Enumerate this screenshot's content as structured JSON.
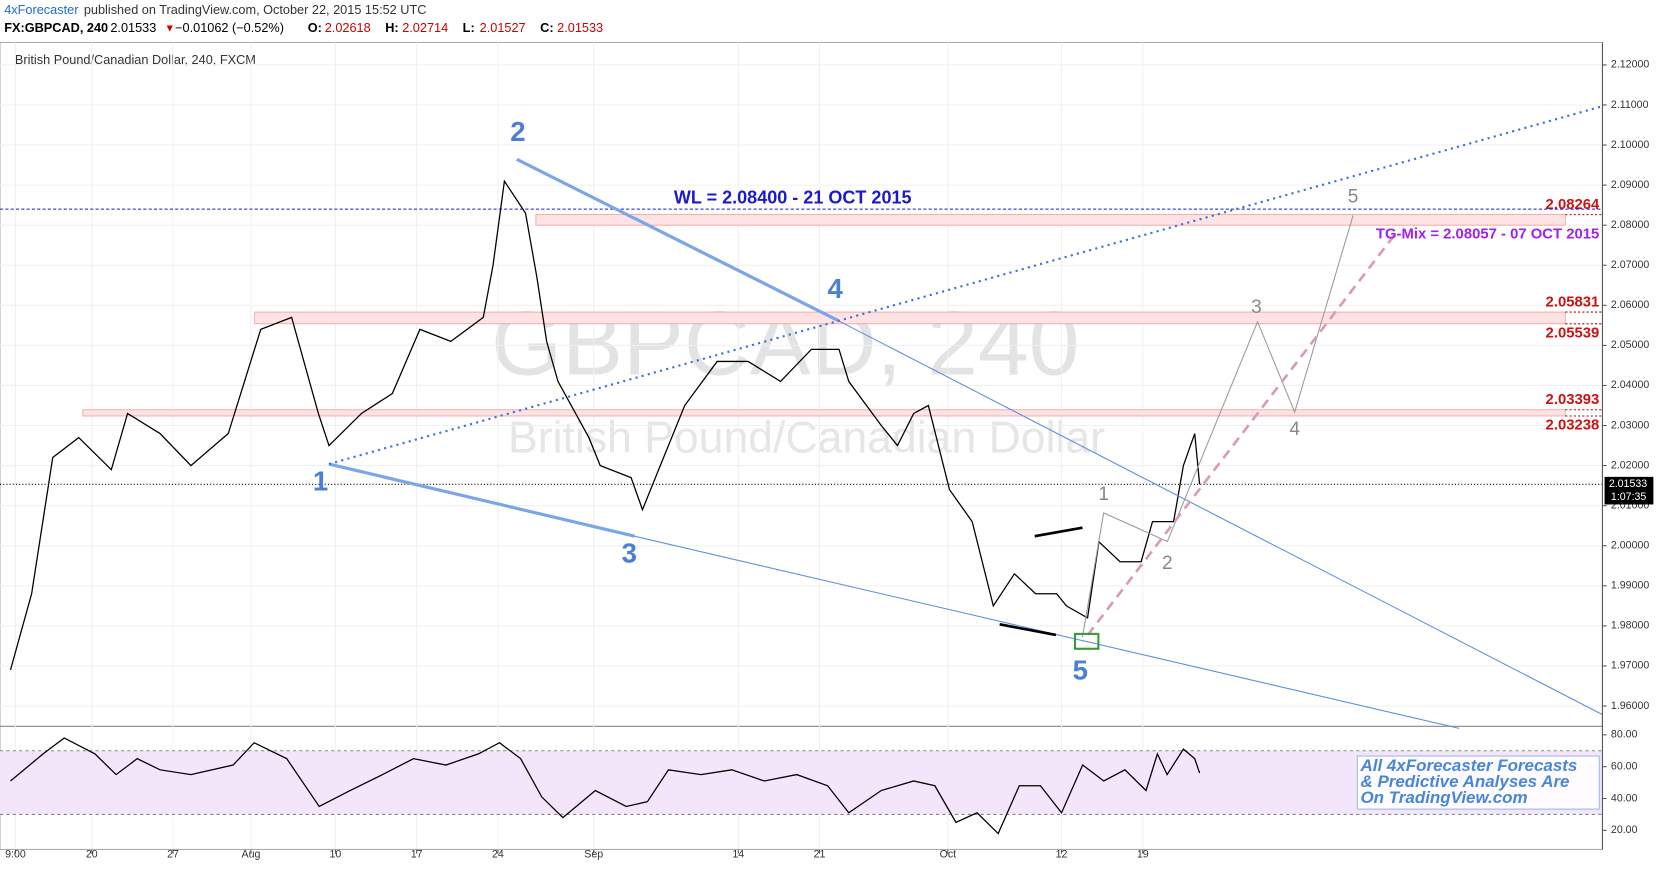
{
  "header": {
    "author": "4xForecaster",
    "published": "published on TradingView.com, October 22, 2015 15:52 UTC",
    "symbol": "FX:GBPCAD, 240",
    "last": "2.01533",
    "change": "−0.01062 (−0.52%)",
    "ohlc": [
      {
        "label": "O:",
        "value": "2.02618"
      },
      {
        "label": "H:",
        "value": "2.02714"
      },
      {
        "label": "L:",
        "value": "2.01527"
      },
      {
        "label": "C:",
        "value": "2.01533"
      }
    ]
  },
  "chart_data": [
    {
      "type": "line",
      "title": "British Pound/Canadian Dollar, 240, FXCM",
      "watermark": "GBPCAD, 240",
      "watermark_sub": "British Pound/Canadian Dollar",
      "color": "#000000",
      "grid": true,
      "x": [
        0,
        1.3,
        2.6,
        4.2,
        6.2,
        7.2,
        9.2,
        11.1,
        13.4,
        15.4,
        17.3,
        18.95,
        19.6,
        21.6,
        23.5,
        25.2,
        27.1,
        29.1,
        29.7,
        30.4,
        31.7,
        32.4,
        33.0,
        33.7,
        35.6,
        36.3,
        38.2,
        38.9,
        40.2,
        41.5,
        43.5,
        45.4,
        47.4,
        49.3,
        51.0,
        51.6,
        53.6,
        54.6,
        55.6,
        56.5,
        57.8,
        59.2,
        60.5,
        61.8,
        63.1,
        64.4,
        65.0,
        66.3,
        67.0,
        68.3,
        69.6,
        70.3,
        71.6,
        72.2,
        72.9,
        73.2
      ],
      "values": [
        1.969,
        1.988,
        2.022,
        2.027,
        2.019,
        2.033,
        2.028,
        2.02,
        2.028,
        2.054,
        2.057,
        2.033,
        2.025,
        2.033,
        2.038,
        2.054,
        2.051,
        2.057,
        2.07,
        2.091,
        2.083,
        2.067,
        2.051,
        2.041,
        2.027,
        2.02,
        2.017,
        2.009,
        2.022,
        2.035,
        2.046,
        2.046,
        2.041,
        2.049,
        2.049,
        2.041,
        2.03,
        2.025,
        2.033,
        2.035,
        2.014,
        2.006,
        1.985,
        1.993,
        1.988,
        1.988,
        1.985,
        1.982,
        2.001,
        1.996,
        1.996,
        2.006,
        2.006,
        2.02,
        2.028,
        2.01533
      ],
      "xlim": [
        -0.65,
        98.0
      ],
      "xticks": [
        {
          "value": 0.3,
          "label": "9:00"
        },
        {
          "value": 5,
          "label": "20"
        },
        {
          "value": 10,
          "label": "27"
        },
        {
          "value": 14.8,
          "label": "Aug"
        },
        {
          "value": 20,
          "label": "10"
        },
        {
          "value": 25,
          "label": "17"
        },
        {
          "value": 30,
          "label": "24"
        },
        {
          "value": 35.9,
          "label": "Sep"
        },
        {
          "value": 44.8,
          "label": "14"
        },
        {
          "value": 49.8,
          "label": "21"
        },
        {
          "value": 57.7,
          "label": "Oct"
        },
        {
          "value": 64.7,
          "label": "12"
        },
        {
          "value": 69.7,
          "label": "19"
        }
      ],
      "ylim": [
        1.9552,
        2.1256
      ],
      "yticks": [
        {
          "value": 1.96,
          "label": "1.96000"
        },
        {
          "value": 1.97,
          "label": "1.97000"
        },
        {
          "value": 1.98,
          "label": "1.98000"
        },
        {
          "value": 1.99,
          "label": "1.99000"
        },
        {
          "value": 2.0,
          "label": "2.00000"
        },
        {
          "value": 2.01,
          "label": "2.01000"
        },
        {
          "value": 2.02,
          "label": "2.02000"
        },
        {
          "value": 2.03,
          "label": "2.03000"
        },
        {
          "value": 2.04,
          "label": "2.04000"
        },
        {
          "value": 2.05,
          "label": "2.05000"
        },
        {
          "value": 2.06,
          "label": "2.06000"
        },
        {
          "value": 2.07,
          "label": "2.07000"
        },
        {
          "value": 2.08,
          "label": "2.08000"
        },
        {
          "value": 2.09,
          "label": "2.09000"
        },
        {
          "value": 2.1,
          "label": "2.10000"
        },
        {
          "value": 2.11,
          "label": "2.11000"
        },
        {
          "value": 2.12,
          "label": "2.12000"
        }
      ],
      "last_price": {
        "value": 2.01533,
        "label": "2.01533"
      },
      "countdown": "1:07:35",
      "level": {
        "value": 2.084,
        "label": "WL = 2.08400 - 21 OCT 2015",
        "color": "#1a1acc"
      },
      "target_label": "TG-Mix = 2.08057 - 07 OCT 2015",
      "zones": [
        {
          "top": 2.08264,
          "bottom": 2.08
        },
        {
          "top": 2.05831,
          "bottom": 2.05539
        },
        {
          "top": 2.03393,
          "bottom": 2.03238
        }
      ],
      "price_labels": [
        2.08264,
        2.05831,
        2.05539,
        2.03393,
        2.03238
      ],
      "wave_labels": [
        "1",
        "2",
        "3",
        "4",
        "5"
      ],
      "alt_wave_labels": [
        "1",
        "2",
        "3",
        "4",
        "5"
      ]
    },
    {
      "type": "line",
      "color": "#000000",
      "x": [
        0,
        2.0,
        3.3,
        5.2,
        6.5,
        7.8,
        9.2,
        11.1,
        13.7,
        15.0,
        17.0,
        19.0,
        20.9,
        22.9,
        24.8,
        26.8,
        28.8,
        30.1,
        31.4,
        32.7,
        34.0,
        36.0,
        37.9,
        39.2,
        40.5,
        42.5,
        44.4,
        46.4,
        48.4,
        50.3,
        51.6,
        53.6,
        55.6,
        56.9,
        58.2,
        59.5,
        60.8,
        62.1,
        63.4,
        64.7,
        66.0,
        67.3,
        68.6,
        69.9,
        70.6,
        71.2,
        72.2,
        72.9,
        73.2
      ],
      "values": [
        51,
        68,
        78,
        68,
        55,
        65,
        58,
        55,
        61,
        75,
        65,
        35,
        45,
        55,
        65,
        61,
        68,
        75,
        65,
        41,
        28,
        45,
        35,
        38,
        58,
        55,
        58,
        51,
        55,
        48,
        31,
        45,
        51,
        48,
        25,
        31,
        18,
        48,
        48,
        31,
        61,
        51,
        58,
        45,
        68,
        55,
        71,
        65,
        56
      ],
      "ylim": [
        8,
        84.7
      ],
      "yticks": [
        {
          "value": 20,
          "label": "20.00"
        },
        {
          "value": 40,
          "label": "40.00"
        },
        {
          "value": 60,
          "label": "60.00"
        },
        {
          "value": 80,
          "label": "80.00"
        }
      ],
      "bands": [
        30,
        70
      ]
    }
  ],
  "promo": [
    "All 4xForecaster Forecasts",
    "& Predictive Analyses Are",
    "On TradingView.com"
  ]
}
